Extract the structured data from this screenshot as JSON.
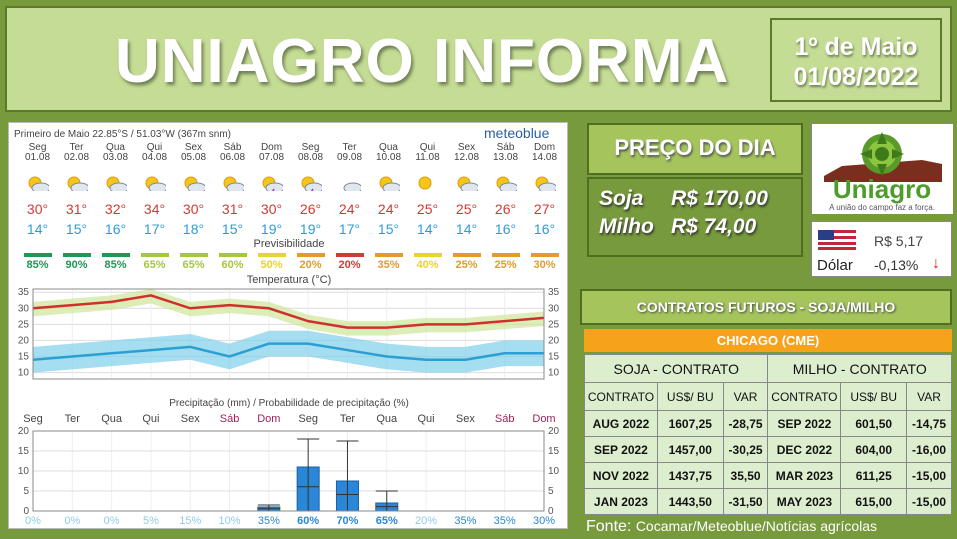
{
  "header": {
    "title": "UNIAGRO INFORMA",
    "date_line1": "1º de Maio",
    "date_line2": "01/08/2022"
  },
  "weather": {
    "location": "Primeiro de Maio  22.85°S / 51.03°W (367m snm)",
    "logo": "meteoblue",
    "days": [
      {
        "day": "Seg",
        "date": "01.08",
        "max": "30°",
        "min": "14°",
        "prev": "85%",
        "prevColor": "#1a9a52",
        "icon": "sun-cloud",
        "weekend": false
      },
      {
        "day": "Ter",
        "date": "02.08",
        "max": "31°",
        "min": "15°",
        "prev": "90%",
        "prevColor": "#1a9a52",
        "icon": "sun-cloud",
        "weekend": false
      },
      {
        "day": "Qua",
        "date": "03.08",
        "max": "32°",
        "min": "16°",
        "prev": "85%",
        "prevColor": "#1a9a52",
        "icon": "sun-cloud",
        "weekend": false
      },
      {
        "day": "Qui",
        "date": "04.08",
        "max": "34°",
        "min": "17°",
        "prev": "65%",
        "prevColor": "#a3c83a",
        "icon": "sun-cloud",
        "weekend": false
      },
      {
        "day": "Sex",
        "date": "05.08",
        "max": "30°",
        "min": "18°",
        "prev": "65%",
        "prevColor": "#a3c83a",
        "icon": "sun-cloud",
        "weekend": false
      },
      {
        "day": "Sáb",
        "date": "06.08",
        "max": "31°",
        "min": "15°",
        "prev": "60%",
        "prevColor": "#a3c83a",
        "icon": "sun-cloud",
        "weekend": true
      },
      {
        "day": "Dom",
        "date": "07.08",
        "max": "30°",
        "min": "19°",
        "prev": "50%",
        "prevColor": "#e8d430",
        "icon": "storm",
        "weekend": true
      },
      {
        "day": "Seg",
        "date": "08.08",
        "max": "26°",
        "min": "19°",
        "prev": "20%",
        "prevColor": "#e39b2a",
        "icon": "storm",
        "weekend": false
      },
      {
        "day": "Ter",
        "date": "09.08",
        "max": "24°",
        "min": "17°",
        "prev": "20%",
        "prevColor": "#d23a34",
        "icon": "rain-cloud",
        "weekend": false
      },
      {
        "day": "Qua",
        "date": "10.08",
        "max": "24°",
        "min": "15°",
        "prev": "35%",
        "prevColor": "#e39b2a",
        "icon": "rain-sun",
        "weekend": false
      },
      {
        "day": "Qui",
        "date": "11.08",
        "max": "25°",
        "min": "14°",
        "prev": "40%",
        "prevColor": "#e8d430",
        "icon": "sun",
        "weekend": false
      },
      {
        "day": "Sex",
        "date": "12.08",
        "max": "25°",
        "min": "14°",
        "prev": "25%",
        "prevColor": "#e39b2a",
        "icon": "sun-cloud",
        "weekend": false
      },
      {
        "day": "Sáb",
        "date": "13.08",
        "max": "26°",
        "min": "16°",
        "prev": "25%",
        "prevColor": "#e39b2a",
        "icon": "sun-cloud",
        "weekend": true
      },
      {
        "day": "Dom",
        "date": "14.08",
        "max": "27°",
        "min": "16°",
        "prev": "30%",
        "prevColor": "#e39b2a",
        "icon": "sun-cloud",
        "weekend": true
      }
    ],
    "prev_label": "Previsibilidade",
    "temp_title": "Temperatura (°C)",
    "precip_title": "Precipitação (mm) / Probabilidade de precipitação (%)",
    "precip_days": [
      "Seg",
      "Ter",
      "Qua",
      "Qui",
      "Sex",
      "Sáb",
      "Dom",
      "Seg",
      "Ter",
      "Qua",
      "Qui",
      "Sex",
      "Sáb",
      "Dom"
    ]
  },
  "chart_data": [
    {
      "type": "line",
      "title": "Temperatura (°C)",
      "x": [
        "Seg",
        "Ter",
        "Qua",
        "Qui",
        "Sex",
        "Sáb",
        "Dom",
        "Seg",
        "Ter",
        "Qua",
        "Qui",
        "Sex",
        "Sáb",
        "Dom"
      ],
      "series": [
        {
          "name": "max",
          "values": [
            30,
            31,
            32,
            34,
            30,
            31,
            30,
            26,
            24,
            24,
            25,
            25,
            26,
            27
          ]
        },
        {
          "name": "min",
          "values": [
            14,
            15,
            16,
            17,
            18,
            15,
            19,
            19,
            17,
            15,
            14,
            14,
            16,
            16
          ]
        }
      ],
      "ylim": [
        8,
        36
      ],
      "yticks": [
        10,
        15,
        20,
        25,
        30,
        35
      ],
      "grid": true
    },
    {
      "type": "bar",
      "title": "Precipitação (mm) / Probabilidade de precipitação (%)",
      "categories": [
        "Seg",
        "Ter",
        "Qua",
        "Qui",
        "Sex",
        "Sáb",
        "Dom",
        "Seg",
        "Ter",
        "Qua",
        "Qui",
        "Sex",
        "Sáb",
        "Dom"
      ],
      "values": [
        0,
        0,
        0,
        0,
        0,
        0,
        1,
        11,
        7.5,
        2,
        0,
        0,
        0,
        0
      ],
      "error_high": [
        0,
        0,
        0,
        0,
        0,
        0,
        1.5,
        18,
        17.5,
        5,
        0,
        0,
        0,
        0
      ],
      "probability": [
        "0%",
        "0%",
        "0%",
        "5%",
        "15%",
        "10%",
        "35%",
        "60%",
        "70%",
        "65%",
        "20%",
        "35%",
        "35%",
        "30%"
      ],
      "ylim": [
        0,
        20
      ],
      "yticks": [
        0,
        5,
        10,
        15,
        20
      ],
      "grid": true
    }
  ],
  "price": {
    "heading": "PREÇO DO DIA",
    "soja_label": "Soja",
    "soja_value": "R$ 170,00",
    "milho_label": "Milho",
    "milho_value": "R$  74,00"
  },
  "brand": {
    "name": "Uniagro",
    "tagline": "A união do campo faz a força."
  },
  "dollar": {
    "price": "R$ 5,17",
    "label": "Dólar",
    "change": "-0,13%"
  },
  "futures": {
    "heading": "CONTRATOS  FUTUROS  - SOJA/MILHO",
    "exchange": "CHICAGO (CME)",
    "soja_header": "SOJA - CONTRATO",
    "milho_header": "MILHO - CONTRATO",
    "col_contract": "CONTRATO",
    "col_price": "US$/ BU",
    "col_var": "VAR",
    "rows": [
      {
        "soja_c": "AUG 2022",
        "soja_p": "1607,25",
        "soja_v": "-28,75",
        "milho_c": "SEP 2022",
        "milho_p": "601,50",
        "milho_v": "-14,75"
      },
      {
        "soja_c": "SEP 2022",
        "soja_p": "1457,00",
        "soja_v": "-30,25",
        "milho_c": "DEC 2022",
        "milho_p": "604,00",
        "milho_v": "-16,00"
      },
      {
        "soja_c": "NOV 2022",
        "soja_p": "1437,75",
        "soja_v": "35,50",
        "milho_c": "MAR 2023",
        "milho_p": "611,25",
        "milho_v": "-15,00"
      },
      {
        "soja_c": "JAN 2023",
        "soja_p": "1443,50",
        "soja_v": "-31,50",
        "milho_c": "MAY 2023",
        "milho_p": "615,00",
        "milho_v": "-15,00"
      }
    ]
  },
  "footer": {
    "prefix": "Fonte:",
    "sources": "Cocamar/Meteoblue/Notícias agrícolas"
  }
}
